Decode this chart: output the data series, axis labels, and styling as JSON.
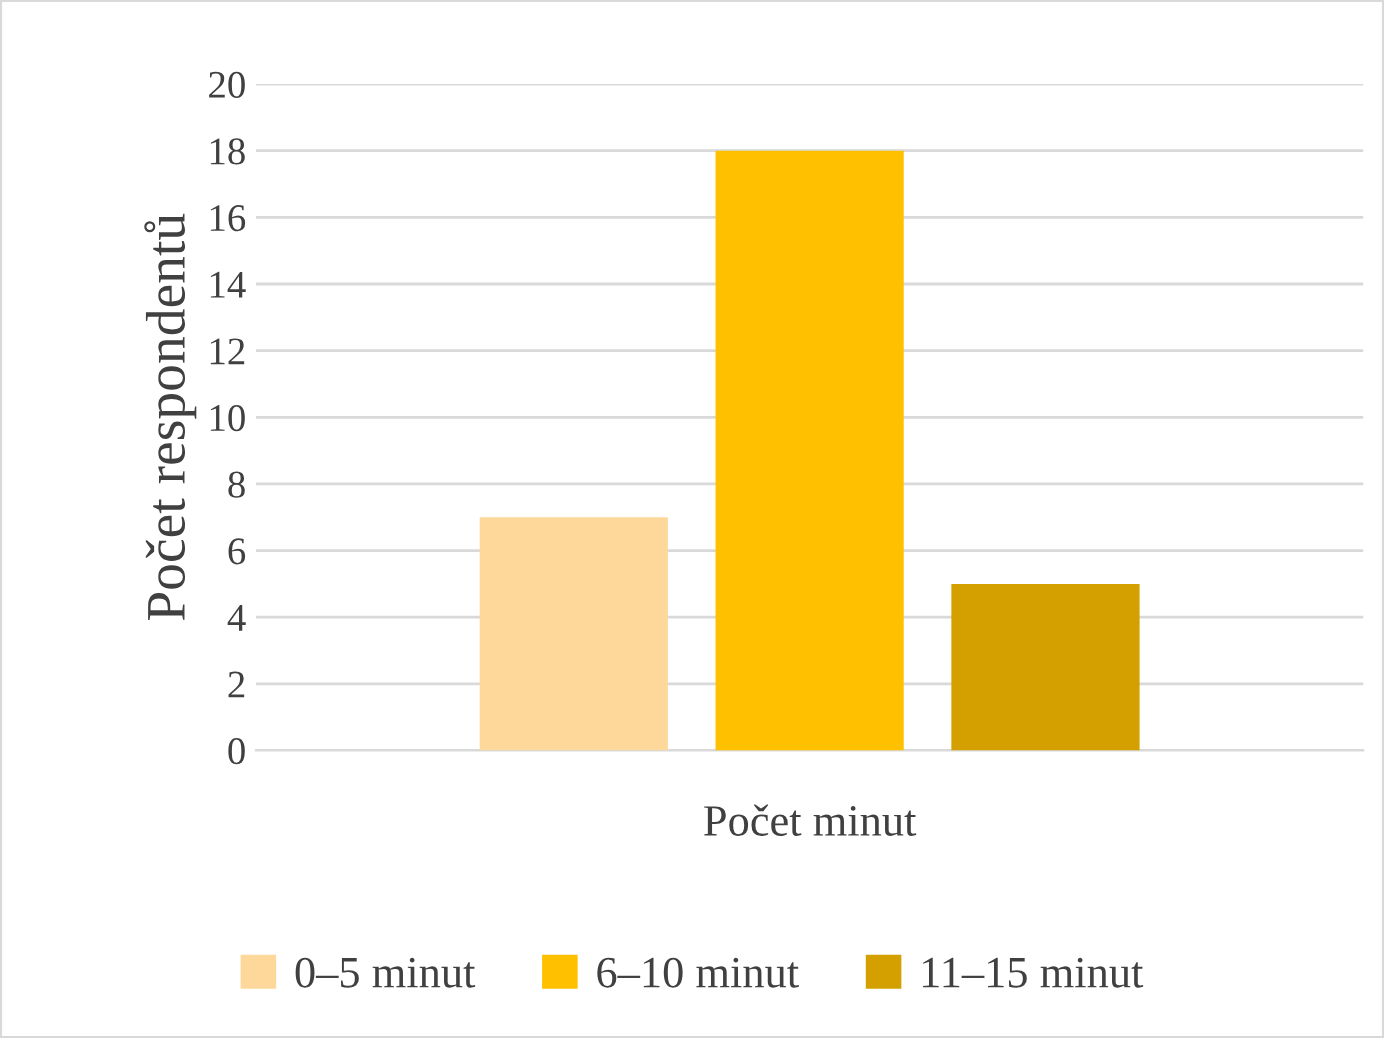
{
  "chart_data": {
    "type": "bar",
    "xlabel": "Počet minut",
    "ylabel": "Počet respondentů",
    "categories": [
      null
    ],
    "series": [
      {
        "name": "0–5 minut",
        "color": "#fed89b",
        "values": [
          7
        ]
      },
      {
        "name": "6–10 minut",
        "color": "#ffc000",
        "values": [
          18
        ]
      },
      {
        "name": "11–15 minut",
        "color": "#d4a000",
        "values": [
          5
        ]
      }
    ],
    "ylim": [
      0,
      20
    ],
    "yticks": [
      0,
      2,
      4,
      6,
      8,
      10,
      12,
      14,
      16,
      18,
      20
    ],
    "grid": "y",
    "legend": "bottom"
  }
}
